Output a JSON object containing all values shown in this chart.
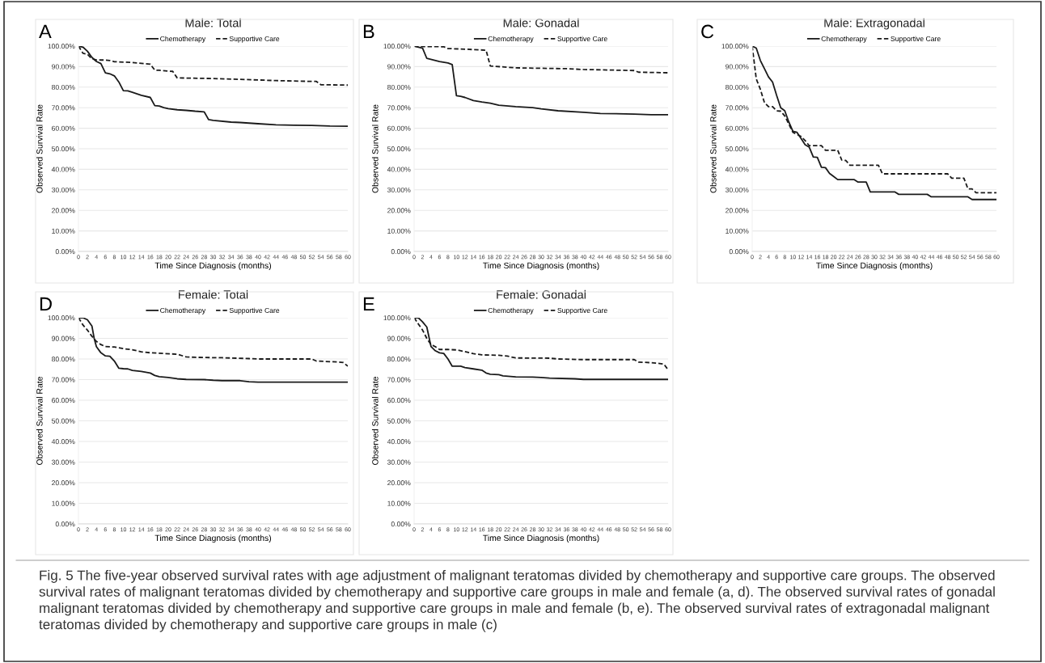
{
  "chart_data": [
    {
      "type": "line",
      "title": "Male: Total",
      "xlabel": "Time Since Diagnosis (months)",
      "ylabel": "Observed Survival Rate",
      "annotations": [
        "A"
      ],
      "xlim": [
        0,
        60
      ],
      "xticks": [
        0,
        2,
        4,
        6,
        8,
        10,
        12,
        14,
        16,
        18,
        20,
        22,
        24,
        26,
        28,
        30,
        32,
        34,
        36,
        38,
        40,
        42,
        44,
        46,
        48,
        50,
        52,
        54,
        56,
        58,
        60
      ],
      "ylim": [
        0,
        100
      ],
      "yticks": [
        {
          "value": 0,
          "label": "0.00%"
        },
        {
          "value": 10,
          "label": "10.00%"
        },
        {
          "value": 20,
          "label": "20.00%"
        },
        {
          "value": 30,
          "label": "30.00%"
        },
        {
          "value": 40,
          "label": "40.00%"
        },
        {
          "value": 50,
          "label": "50.00%"
        },
        {
          "value": 60,
          "label": "60.00%"
        },
        {
          "value": 70,
          "label": "70.00%"
        },
        {
          "value": 80,
          "label": "80.00%"
        },
        {
          "value": 90,
          "label": "90.00%"
        },
        {
          "value": 100,
          "label": "100.00%"
        }
      ],
      "grid": "y",
      "legend": "top",
      "series": [
        {
          "name": "Chemotherapy",
          "color": "#1a1a1a",
          "line_style": "solid",
          "x": [
            0,
            1,
            2,
            3,
            4,
            5,
            6,
            7,
            8,
            9,
            10,
            11,
            12,
            14,
            16,
            17,
            18,
            19,
            20,
            22,
            24,
            26,
            28,
            29,
            30,
            34,
            36,
            40,
            44,
            48,
            52,
            56,
            60
          ],
          "values": [
            100,
            99.5,
            97.5,
            94.5,
            92.5,
            91.5,
            87,
            86.5,
            85.5,
            82.5,
            78.3,
            78.2,
            77.5,
            76,
            75,
            71,
            70.8,
            70,
            69.5,
            69,
            68.7,
            68.3,
            68,
            64.2,
            63.8,
            63,
            62.8,
            62.2,
            61.7,
            61.5,
            61.4,
            61.1,
            61
          ]
        },
        {
          "name": "Supportive Care",
          "color": "#1a1a1a",
          "line_style": "dashed",
          "x": [
            0,
            1,
            2,
            3,
            4,
            5,
            6,
            7,
            8,
            12,
            16,
            17,
            18,
            20,
            21,
            22,
            30,
            36,
            40,
            44,
            52,
            53,
            54,
            60
          ],
          "values": [
            100,
            96.5,
            96,
            93.8,
            93.3,
            93.2,
            93.2,
            93,
            92.4,
            92,
            91.2,
            88.3,
            88.2,
            87.8,
            87.7,
            84.5,
            84.2,
            83.8,
            83.5,
            83.2,
            82.8,
            82.8,
            81.2,
            81
          ]
        }
      ]
    },
    {
      "type": "line",
      "title": "Male: Gonadal",
      "xlabel": "Time Since Diagnosis (months)",
      "ylabel": "Observed Survival Rate",
      "annotations": [
        "B"
      ],
      "xlim": [
        0,
        60
      ],
      "xticks": [
        0,
        2,
        4,
        6,
        8,
        10,
        12,
        14,
        16,
        18,
        20,
        22,
        24,
        26,
        28,
        30,
        32,
        34,
        36,
        38,
        40,
        42,
        44,
        46,
        48,
        50,
        52,
        54,
        56,
        58,
        60
      ],
      "ylim": [
        0,
        100
      ],
      "yticks": [
        {
          "value": 0,
          "label": "0.00%"
        },
        {
          "value": 10,
          "label": "10.00%"
        },
        {
          "value": 20,
          "label": "20.00%"
        },
        {
          "value": 30,
          "label": "30.00%"
        },
        {
          "value": 40,
          "label": "40.00%"
        },
        {
          "value": 50,
          "label": "50.00%"
        },
        {
          "value": 60,
          "label": "60.00%"
        },
        {
          "value": 70,
          "label": "70.00%"
        },
        {
          "value": 80,
          "label": "80.00%"
        },
        {
          "value": 90,
          "label": "90.00%"
        },
        {
          "value": 100,
          "label": "100.00%"
        }
      ],
      "grid": "y",
      "legend": "top",
      "series": [
        {
          "name": "Chemotherapy",
          "color": "#1a1a1a",
          "line_style": "solid",
          "x": [
            0,
            2,
            3,
            6,
            8,
            9,
            10,
            11,
            12,
            14,
            16,
            18,
            20,
            24,
            28,
            30,
            34,
            40,
            44,
            52,
            56,
            60
          ],
          "values": [
            100,
            99,
            94,
            92.5,
            91.8,
            91,
            75.8,
            75.5,
            75,
            73.5,
            72.8,
            72.2,
            71.2,
            70.5,
            70,
            69.4,
            68.5,
            67.8,
            67.2,
            66.9,
            66.6,
            66.6
          ]
        },
        {
          "name": "Supportive Care",
          "color": "#1a1a1a",
          "line_style": "dashed",
          "x": [
            0,
            2,
            7,
            8,
            12,
            17,
            18,
            24,
            36,
            40,
            52,
            53,
            60
          ],
          "values": [
            100,
            99.8,
            99.7,
            98.8,
            98.5,
            98,
            90.3,
            89.4,
            89,
            88.6,
            88.1,
            87.3,
            87
          ]
        }
      ]
    },
    {
      "type": "line",
      "title": "Male: Extragonadal",
      "xlabel": "Time Since Diagnosis (months)",
      "ylabel": "Observed Survival Rate",
      "annotations": [
        "C"
      ],
      "xlim": [
        0,
        60
      ],
      "xticks": [
        0,
        2,
        4,
        6,
        8,
        10,
        12,
        14,
        16,
        18,
        20,
        22,
        24,
        26,
        28,
        30,
        32,
        34,
        36,
        38,
        40,
        42,
        44,
        46,
        48,
        50,
        52,
        54,
        56,
        58,
        60
      ],
      "ylim": [
        0,
        100
      ],
      "yticks": [
        {
          "value": 0,
          "label": "0.00%"
        },
        {
          "value": 10,
          "label": "10.00%"
        },
        {
          "value": 20,
          "label": "20.00%"
        },
        {
          "value": 30,
          "label": "30.00%"
        },
        {
          "value": 40,
          "label": "40.00%"
        },
        {
          "value": 50,
          "label": "50.00%"
        },
        {
          "value": 60,
          "label": "60.00%"
        },
        {
          "value": 70,
          "label": "70.00%"
        },
        {
          "value": 80,
          "label": "80.00%"
        },
        {
          "value": 90,
          "label": "90.00%"
        },
        {
          "value": 100,
          "label": "100.00%"
        }
      ],
      "grid": "y",
      "legend": "top",
      "series": [
        {
          "name": "Chemotherapy",
          "color": "#1a1a1a",
          "line_style": "solid",
          "x": [
            0,
            1,
            2,
            3,
            4,
            5,
            6,
            7,
            8,
            9,
            10,
            11,
            12,
            13,
            14,
            15,
            16,
            17,
            18,
            19,
            20,
            21,
            25,
            26,
            28,
            29,
            35,
            36,
            43,
            44,
            53,
            54,
            60
          ],
          "values": [
            100,
            99,
            93,
            89,
            85,
            82.5,
            76,
            70,
            68.5,
            63,
            58.5,
            58,
            55,
            52,
            50.8,
            46,
            45.8,
            41,
            40.8,
            38,
            36.5,
            35,
            35,
            33.8,
            33.8,
            29,
            29,
            27.8,
            27.8,
            26.6,
            26.6,
            25.3,
            25.3
          ]
        },
        {
          "name": "Supportive Care",
          "color": "#1a1a1a",
          "line_style": "dashed",
          "x": [
            0,
            1,
            2,
            3,
            4,
            5,
            6,
            7,
            8,
            9,
            10,
            12,
            13,
            14,
            17,
            18,
            21,
            22,
            23,
            24,
            31,
            32,
            48,
            49,
            52,
            53,
            54,
            55,
            60
          ],
          "values": [
            100,
            84,
            79,
            72.5,
            70.5,
            70.5,
            68.5,
            68.3,
            66,
            62,
            58,
            56,
            54,
            51.5,
            51.5,
            49.3,
            49.3,
            44.5,
            44.3,
            42,
            42,
            37.8,
            37.8,
            35.7,
            35.7,
            30.5,
            30.5,
            28.6,
            28.6
          ]
        }
      ]
    },
    {
      "type": "line",
      "title": "Female: Total",
      "xlabel": "Time Since Diagnosis (months)",
      "ylabel": "Observed Survival Rate",
      "annotations": [
        "D"
      ],
      "xlim": [
        0,
        60
      ],
      "xticks": [
        0,
        2,
        4,
        6,
        8,
        10,
        12,
        14,
        16,
        18,
        20,
        22,
        24,
        26,
        28,
        30,
        32,
        34,
        36,
        38,
        40,
        42,
        44,
        46,
        48,
        50,
        52,
        54,
        56,
        58,
        60
      ],
      "ylim": [
        0,
        100
      ],
      "yticks": [
        {
          "value": 0,
          "label": "0.00%"
        },
        {
          "value": 10,
          "label": "10.00%"
        },
        {
          "value": 20,
          "label": "20.00%"
        },
        {
          "value": 30,
          "label": "30.00%"
        },
        {
          "value": 40,
          "label": "40.00%"
        },
        {
          "value": 50,
          "label": "50.00%"
        },
        {
          "value": 60,
          "label": "60.00%"
        },
        {
          "value": 70,
          "label": "70.00%"
        },
        {
          "value": 80,
          "label": "80.00%"
        },
        {
          "value": 90,
          "label": "90.00%"
        },
        {
          "value": 100,
          "label": "100.00%"
        }
      ],
      "grid": "y",
      "legend": "top",
      "series": [
        {
          "name": "Chemotherapy",
          "color": "#1a1a1a",
          "line_style": "solid",
          "x": [
            0,
            1,
            2,
            3,
            3.5,
            4,
            5,
            6,
            7,
            8,
            9,
            10,
            11,
            12,
            14,
            16,
            17,
            18,
            20,
            22,
            24,
            28,
            30,
            32,
            36,
            38,
            40,
            60
          ],
          "values": [
            100,
            100,
            99,
            96,
            90,
            86,
            83,
            81.5,
            81.3,
            79,
            75.5,
            75.3,
            75.2,
            74.5,
            74,
            73.2,
            72,
            71.4,
            71,
            70.4,
            70.1,
            70,
            69.7,
            69.5,
            69.5,
            69,
            68.8,
            68.8
          ]
        },
        {
          "name": "Supportive Care",
          "color": "#1a1a1a",
          "line_style": "dashed",
          "x": [
            0,
            1,
            2,
            3,
            4,
            5,
            6,
            8,
            10,
            12,
            14,
            16,
            18,
            22,
            24,
            26,
            32,
            38,
            40,
            52,
            53,
            58,
            59,
            60
          ],
          "values": [
            100,
            96.5,
            94,
            91,
            88.5,
            87,
            86,
            85.8,
            85,
            84.5,
            83.5,
            83,
            82.8,
            82.3,
            81,
            80.8,
            80.6,
            80.2,
            80,
            80,
            79,
            78.5,
            78.3,
            76.5
          ]
        }
      ]
    },
    {
      "type": "line",
      "title": "Female: Gonadal",
      "xlabel": "Time Since Diagnosis (months)",
      "ylabel": "Observed Survival Rate",
      "annotations": [
        "E",
        "Fig. 5 The five-year observed survival rates with age adjustment of malignant teratomas divided by chemotherapy and supportive care groups. The observed survival rates of malignant teratomas divided by chemotherapy and supportive care groups in male and female (a, d). The observed survival rates of gonadal malignant teratomas divided by chemotherapy and supportive care groups in male and female (b, e). The observed survival rates of extragonadal malignant teratomas divided by chemotherapy and supportive care groups in male (c)"
      ],
      "xlim": [
        0,
        60
      ],
      "xticks": [
        0,
        2,
        4,
        6,
        8,
        10,
        12,
        14,
        16,
        18,
        20,
        22,
        24,
        26,
        28,
        30,
        32,
        34,
        36,
        38,
        40,
        42,
        44,
        46,
        48,
        50,
        52,
        54,
        56,
        58,
        60
      ],
      "ylim": [
        0,
        100
      ],
      "yticks": [
        {
          "value": 0,
          "label": "0.00%"
        },
        {
          "value": 10,
          "label": "10.00%"
        },
        {
          "value": 20,
          "label": "20.00%"
        },
        {
          "value": 30,
          "label": "30.00%"
        },
        {
          "value": 40,
          "label": "40.00%"
        },
        {
          "value": 50,
          "label": "50.00%"
        },
        {
          "value": 60,
          "label": "60.00%"
        },
        {
          "value": 70,
          "label": "70.00%"
        },
        {
          "value": 80,
          "label": "80.00%"
        },
        {
          "value": 90,
          "label": "90.00%"
        },
        {
          "value": 100,
          "label": "100.00%"
        }
      ],
      "grid": "y",
      "legend": "top",
      "series": [
        {
          "name": "Chemotherapy",
          "color": "#1a1a1a",
          "line_style": "solid",
          "x": [
            0,
            1,
            2,
            3,
            4,
            5,
            6,
            7,
            8,
            9,
            11,
            12,
            14,
            16,
            17,
            18,
            20,
            21,
            24,
            28,
            30,
            32,
            38,
            40,
            60
          ],
          "values": [
            100,
            100,
            98,
            95.5,
            86,
            84,
            83,
            82.7,
            80,
            76.5,
            76.5,
            75.8,
            75.2,
            74.6,
            73.2,
            72.6,
            72.4,
            71.8,
            71.3,
            71.2,
            71,
            70.7,
            70.4,
            70.1,
            70.1
          ]
        },
        {
          "name": "Supportive Care",
          "color": "#1a1a1a",
          "line_style": "dashed",
          "x": [
            0,
            1,
            2,
            3,
            4,
            5,
            6,
            8,
            10,
            12,
            14,
            16,
            20,
            22,
            24,
            32,
            34,
            40,
            52,
            53,
            56,
            58,
            59,
            60
          ],
          "values": [
            100,
            97,
            94,
            90,
            87,
            86,
            84.6,
            84.6,
            84.4,
            83.6,
            82.6,
            82,
            81.8,
            81.4,
            80.5,
            80.4,
            80,
            79.7,
            79.7,
            78.5,
            78.2,
            77.8,
            77.5,
            74.8
          ]
        }
      ]
    }
  ]
}
